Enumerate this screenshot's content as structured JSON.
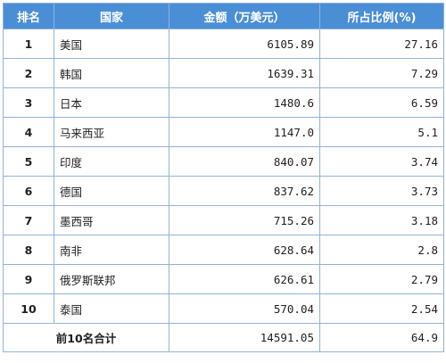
{
  "table": {
    "headers": {
      "rank": "排名",
      "country": "国家",
      "amount": "金额（万美元）",
      "share": "所占比例(%)"
    },
    "rows": [
      {
        "rank": "1",
        "country": "美国",
        "amount": "6105.89",
        "share": "27.16"
      },
      {
        "rank": "2",
        "country": "韩国",
        "amount": "1639.31",
        "share": "7.29"
      },
      {
        "rank": "3",
        "country": "日本",
        "amount": "1480.6",
        "share": "6.59"
      },
      {
        "rank": "4",
        "country": "马来西亚",
        "amount": "1147.0",
        "share": "5.1"
      },
      {
        "rank": "5",
        "country": "印度",
        "amount": "840.07",
        "share": "3.74"
      },
      {
        "rank": "6",
        "country": "德国",
        "amount": "837.62",
        "share": "3.73"
      },
      {
        "rank": "7",
        "country": "墨西哥",
        "amount": "715.26",
        "share": "3.18"
      },
      {
        "rank": "8",
        "country": "南非",
        "amount": "628.64",
        "share": "2.8"
      },
      {
        "rank": "9",
        "country": "俄罗斯联邦",
        "amount": "626.61",
        "share": "2.79"
      },
      {
        "rank": "10",
        "country": "泰国",
        "amount": "570.04",
        "share": "2.54"
      }
    ],
    "total": {
      "label": "前10名合计",
      "amount": "14591.05",
      "share": "64.9"
    }
  },
  "colors": {
    "header_background": "#4a8fd6",
    "header_text": "#ffffff",
    "grid_border": "#8fb3dc"
  }
}
